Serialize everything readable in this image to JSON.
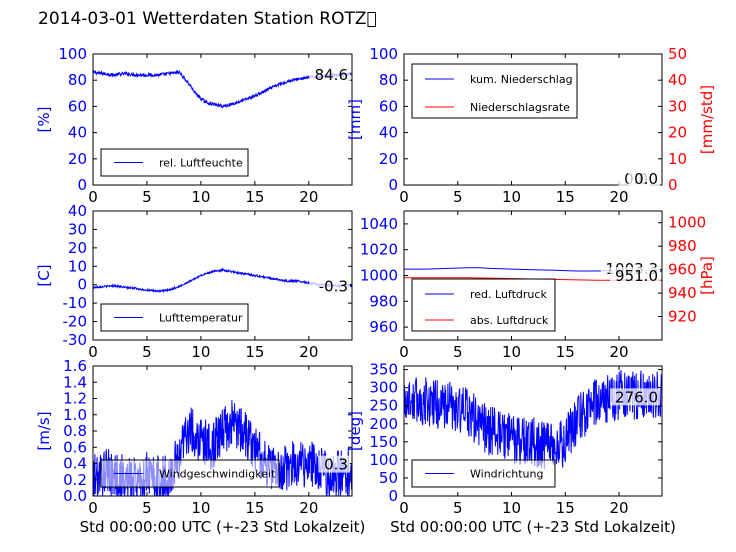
{
  "figure": {
    "title": "2014-03-01 Wetterdaten Station ROTZ\u0000"
  },
  "chart_data": [
    {
      "id": "humidity",
      "type": "line",
      "xlim": [
        0,
        24
      ],
      "xticks": [
        0,
        5,
        10,
        15,
        20
      ],
      "ylim": [
        0,
        100
      ],
      "yticks": [
        0,
        20,
        40,
        60,
        80,
        100
      ],
      "ylabel": "[%]",
      "xlabel": "",
      "last_value_label": "84.6",
      "legend": {
        "placement": "lower-left",
        "entries": [
          {
            "name": "rel. Luftfeuchte",
            "color": "#0000ff"
          }
        ]
      },
      "series": [
        {
          "name": "rel. Luftfeuchte",
          "color": "#0000ff",
          "axis": "left",
          "x": [
            0,
            1,
            2,
            3,
            4,
            5,
            6,
            7,
            8,
            8.5,
            9,
            9.5,
            10,
            10.5,
            11,
            11.5,
            12,
            12.5,
            13,
            14,
            15,
            16,
            17,
            18,
            19,
            20,
            21,
            22,
            23,
            24
          ],
          "y": [
            86,
            85,
            84,
            85,
            84,
            84,
            84,
            85,
            86,
            81,
            76,
            70,
            66,
            63,
            62,
            61,
            60,
            61,
            62,
            65,
            68,
            72,
            76,
            79,
            81,
            82,
            83,
            84,
            84,
            84.6
          ],
          "noise": 1.2
        }
      ]
    },
    {
      "id": "precip",
      "type": "line",
      "xlim": [
        0,
        24
      ],
      "xticks": [
        0,
        5,
        10,
        15,
        20
      ],
      "ylim": [
        0,
        100
      ],
      "yticks": [
        0,
        20,
        40,
        60,
        80,
        100
      ],
      "ylabel": "[mm]",
      "y2lim": [
        0,
        50
      ],
      "y2ticks": [
        0,
        10,
        20,
        30,
        40,
        50
      ],
      "y2label": "[mm/std]",
      "xlabel": "",
      "value_labels": [
        "0.0",
        "0.0"
      ],
      "legend": {
        "placement": "upper-left",
        "entries": [
          {
            "name": "kum. Niederschlag",
            "color": "#0000ff"
          },
          {
            "name": "Niederschlagsrate",
            "color": "#ff0000"
          }
        ]
      },
      "series": [
        {
          "name": "kum. Niederschlag",
          "color": "#0000ff",
          "axis": "left",
          "x": [
            0,
            24
          ],
          "y": [
            0,
            0
          ],
          "noise": 0
        },
        {
          "name": "Niederschlagsrate",
          "color": "#ff0000",
          "axis": "right",
          "x": [
            0,
            24
          ],
          "y": [
            0,
            0
          ],
          "noise": 0
        }
      ]
    },
    {
      "id": "temperature",
      "type": "line",
      "xlim": [
        0,
        24
      ],
      "xticks": [
        0,
        5,
        10,
        15,
        20
      ],
      "ylim": [
        -30,
        40
      ],
      "yticks": [
        -30,
        -20,
        -10,
        0,
        10,
        20,
        30,
        40
      ],
      "ylabel": "[C]",
      "xlabel": "",
      "last_value_label": "-0.3",
      "legend": {
        "placement": "lower-left",
        "entries": [
          {
            "name": "Lufttemperatur",
            "color": "#0000ff"
          }
        ]
      },
      "series": [
        {
          "name": "Lufttemperatur",
          "color": "#0000ff",
          "axis": "left",
          "x": [
            0,
            1,
            2,
            3,
            4,
            5,
            6,
            7,
            8,
            9,
            10,
            11,
            12,
            13,
            14,
            15,
            16,
            17,
            18,
            19,
            20,
            21,
            22,
            23,
            24
          ],
          "y": [
            -1.5,
            -1,
            -0.5,
            -1.5,
            -2,
            -3,
            -3.5,
            -3,
            -1,
            2,
            5,
            7,
            8,
            7,
            6,
            5,
            4,
            3,
            2,
            2,
            1,
            0,
            -0.5,
            -0.5,
            -0.3
          ],
          "noise": 0.5
        }
      ]
    },
    {
      "id": "pressure",
      "type": "line",
      "xlim": [
        0,
        24
      ],
      "xticks": [
        0,
        5,
        10,
        15,
        20
      ],
      "ylim": [
        950,
        1050
      ],
      "yticks": [
        960,
        980,
        1000,
        1020,
        1040
      ],
      "ylabel": "",
      "y2lim": [
        900,
        1010
      ],
      "y2ticks": [
        920,
        940,
        960,
        980,
        1000
      ],
      "y2label": "[hPa]",
      "xlabel": "",
      "value_labels": [
        "1003.3",
        "951.0"
      ],
      "legend": {
        "placement": "lower-left",
        "entries": [
          {
            "name": "red. Luftdruck",
            "color": "#0000ff"
          },
          {
            "name": "abs. Luftdruck",
            "color": "#ff0000"
          }
        ]
      },
      "series": [
        {
          "name": "red. Luftdruck",
          "color": "#0000ff",
          "axis": "left",
          "x": [
            0,
            2,
            4,
            6,
            7,
            8,
            10,
            12,
            14,
            16,
            18,
            20,
            22,
            24
          ],
          "y": [
            1005,
            1005,
            1005.5,
            1006,
            1006,
            1005.5,
            1005,
            1004.5,
            1004,
            1003.5,
            1003.5,
            1004,
            1004,
            1003.3
          ],
          "noise": 0
        },
        {
          "name": "abs. Luftdruck",
          "color": "#ff0000",
          "axis": "right",
          "x": [
            0,
            3,
            6,
            9,
            12,
            15,
            18,
            21,
            24
          ],
          "y": [
            953,
            953,
            953,
            952.5,
            952,
            951.5,
            951,
            951,
            951.0
          ],
          "noise": 0
        }
      ]
    },
    {
      "id": "windspeed",
      "type": "line",
      "xlim": [
        0,
        24
      ],
      "xticks": [
        0,
        5,
        10,
        15,
        20
      ],
      "ylim": [
        0,
        1.6
      ],
      "yticks": [
        0.0,
        0.2,
        0.4,
        0.6,
        0.8,
        1.0,
        1.2,
        1.4,
        1.6
      ],
      "ylabel": "[m/s]",
      "xlabel": "Std 00:00:00 UTC (+-23 Std Lokalzeit)",
      "last_value_label": "0.3",
      "legend": {
        "placement": "lower-left",
        "entries": [
          {
            "name": "Windgeschwindigkeit",
            "color": "#0000ff"
          }
        ]
      },
      "series": [
        {
          "name": "Windgeschwindigkeit",
          "color": "#0000ff",
          "axis": "left",
          "x": [
            0,
            1,
            2,
            3,
            4,
            5,
            6,
            7,
            8,
            8.5,
            9,
            10,
            11,
            12,
            13,
            14,
            15,
            16,
            17,
            18,
            19,
            20,
            21,
            22,
            23,
            24
          ],
          "y": [
            0.2,
            0.3,
            0.25,
            0.2,
            0.2,
            0.25,
            0.2,
            0.2,
            0.5,
            0.8,
            0.8,
            0.7,
            0.6,
            0.8,
            0.9,
            0.8,
            0.6,
            0.4,
            0.3,
            0.35,
            0.4,
            0.4,
            0.3,
            0.25,
            0.3,
            0.3
          ],
          "noise": 0.3
        }
      ]
    },
    {
      "id": "winddir",
      "type": "line",
      "xlim": [
        0,
        24
      ],
      "xticks": [
        0,
        5,
        10,
        15,
        20
      ],
      "ylim": [
        0,
        360
      ],
      "yticks": [
        0,
        50,
        100,
        150,
        200,
        250,
        300,
        350
      ],
      "ylabel": "[deg]",
      "xlabel": "Std 00:00:00 UTC (+-23 Std Lokalzeit)",
      "last_value_label": "276.0",
      "legend": {
        "placement": "lower-left",
        "entries": [
          {
            "name": "Windrichtung",
            "color": "#0000ff"
          }
        ]
      },
      "series": [
        {
          "name": "Windrichtung",
          "color": "#0000ff",
          "axis": "left",
          "x": [
            0,
            2,
            4,
            6,
            7,
            8,
            9,
            10,
            11,
            12,
            13,
            14,
            15,
            16,
            17,
            18,
            19,
            20,
            21,
            22,
            23,
            24
          ],
          "y": [
            270,
            260,
            250,
            230,
            200,
            180,
            170,
            160,
            150,
            150,
            140,
            130,
            150,
            200,
            240,
            260,
            270,
            280,
            280,
            280,
            276,
            276
          ],
          "noise": 70
        }
      ]
    }
  ]
}
